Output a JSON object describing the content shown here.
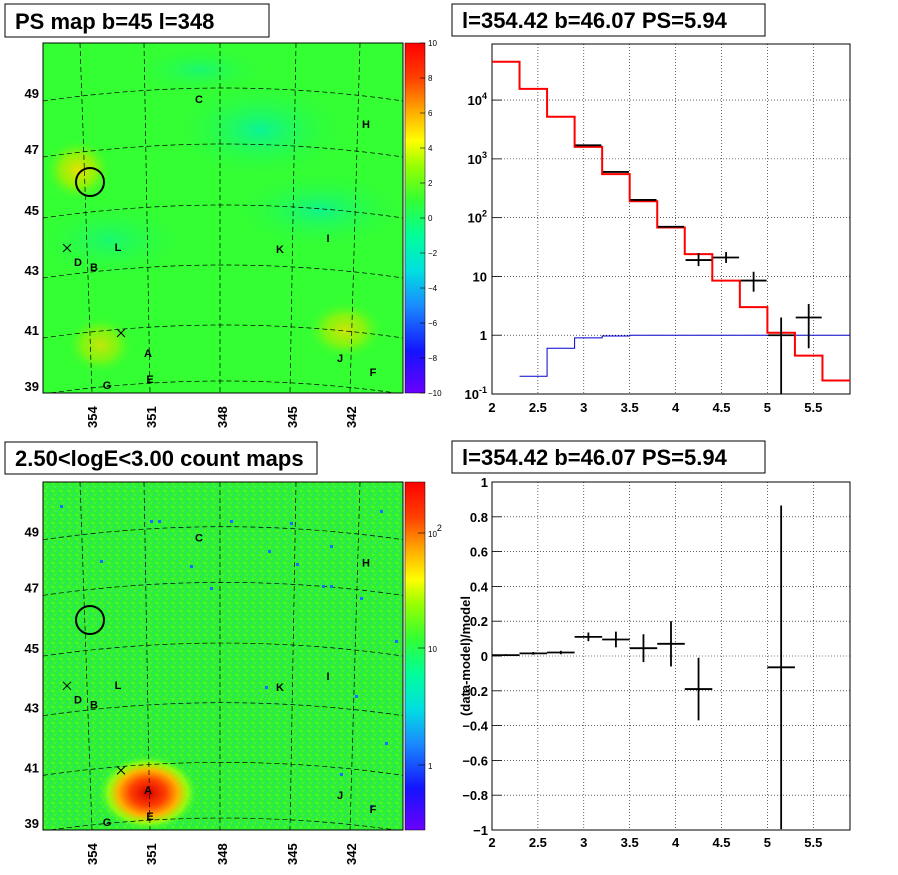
{
  "chart_data": [
    {
      "type": "heatmap",
      "title": "PS map b=45 l=348",
      "x_ticks": [
        "354",
        "351",
        "348",
        "345",
        "342"
      ],
      "y_ticks": [
        "49",
        "47",
        "45",
        "43",
        "41",
        "39"
      ],
      "colorbar_ticks": [
        "10",
        "8",
        "6",
        "4",
        "2",
        "0",
        "−2",
        "−4",
        "−6",
        "−8",
        "−10"
      ],
      "colorbar_range": [
        -10,
        10
      ],
      "source_labels": [
        "C",
        "H",
        "I",
        "K",
        "L",
        "D",
        "B",
        "A",
        "J",
        "F",
        "G",
        "E"
      ],
      "hotspots": [
        {
          "name": "source-region-upper-left",
          "value": 6
        },
        {
          "name": "source-region-lower-left",
          "value": 4
        },
        {
          "name": "source-region-right",
          "value": 5
        }
      ]
    },
    {
      "type": "line",
      "title": "l=354.42 b=46.07 PS=5.94",
      "log_y": true,
      "xlim": [
        2,
        5.9
      ],
      "ylim": [
        0.1,
        90000
      ],
      "x_ticks": [
        "2",
        "2.5",
        "3",
        "3.5",
        "4",
        "4.5",
        "5",
        "5.5"
      ],
      "y_ticks": [
        {
          "label": "10",
          "sup": "-1",
          "value": 0.1
        },
        {
          "label": "1",
          "sup": "",
          "value": 1
        },
        {
          "label": "10",
          "sup": "",
          "value": 10
        },
        {
          "label": "10",
          "sup": "2",
          "value": 100
        },
        {
          "label": "10",
          "sup": "3",
          "value": 1000
        },
        {
          "label": "10",
          "sup": "4",
          "value": 10000
        }
      ],
      "bin_edges": [
        2.0,
        2.3,
        2.6,
        2.9,
        3.2,
        3.5,
        3.8,
        4.1,
        4.4,
        4.7,
        5.0,
        5.3,
        5.6,
        5.9
      ],
      "model_total": [
        45000,
        15500,
        5200,
        1600,
        550,
        190,
        68,
        24,
        8.5,
        3,
        1.1,
        0.45,
        0.17
      ],
      "model_source": [
        null,
        0.2,
        0.6,
        0.9,
        0.97,
        1,
        1,
        1,
        1,
        1,
        1,
        1,
        1
      ],
      "data": [
        {
          "x": 3.05,
          "y": 1700,
          "ylo": 1700,
          "yhi": 1700
        },
        {
          "x": 3.35,
          "y": 600,
          "ylo": 600,
          "yhi": 600
        },
        {
          "x": 3.65,
          "y": 200,
          "ylo": 200,
          "yhi": 200
        },
        {
          "x": 3.95,
          "y": 70,
          "ylo": 70,
          "yhi": 70
        },
        {
          "x": 4.25,
          "y": 19,
          "ylo": 15,
          "yhi": 25
        },
        {
          "x": 4.55,
          "y": 21,
          "ylo": 17,
          "yhi": 26
        },
        {
          "x": 4.85,
          "y": 8.5,
          "ylo": 5.5,
          "yhi": 12
        },
        {
          "x": 5.15,
          "y": 1,
          "ylo": 0.1,
          "yhi": 2
        },
        {
          "x": 5.45,
          "y": 2,
          "ylo": 0.6,
          "yhi": 3.4
        }
      ]
    },
    {
      "type": "heatmap",
      "title": "2.50<logE<3.00 count maps",
      "x_ticks": [
        "354",
        "351",
        "348",
        "345",
        "342"
      ],
      "y_ticks": [
        "49",
        "47",
        "45",
        "43",
        "41",
        "39"
      ],
      "colorbar_ticks": [
        {
          "label": "10",
          "sup": "2"
        },
        {
          "label": "10",
          "sup": ""
        },
        {
          "label": "1",
          "sup": ""
        }
      ],
      "source_labels": [
        "C",
        "H",
        "I",
        "K",
        "L",
        "D",
        "B",
        "A",
        "J",
        "F",
        "G",
        "E"
      ],
      "hotspots": [
        {
          "name": "source-A-peak",
          "value": 100
        }
      ]
    },
    {
      "type": "scatter",
      "title": "l=354.42 b=46.07 PS=5.94",
      "ylabel": "(data-model)/model",
      "xlim": [
        2,
        5.9
      ],
      "ylim": [
        -1,
        1
      ],
      "x_ticks": [
        "2",
        "2.5",
        "3",
        "3.5",
        "4",
        "4.5",
        "5",
        "5.5"
      ],
      "y_ticks": [
        "1",
        "0.8",
        "0.6",
        "0.4",
        "0.2",
        "0",
        "−0.2",
        "−0.4",
        "−0.6",
        "−0.8",
        "−1"
      ],
      "points": [
        {
          "x": 2.15,
          "y": 0.005,
          "xerr": 0.15,
          "yerr": 0.005
        },
        {
          "x": 2.45,
          "y": 0.015,
          "xerr": 0.15,
          "yerr": 0.008
        },
        {
          "x": 2.75,
          "y": 0.02,
          "xerr": 0.15,
          "yerr": 0.01
        },
        {
          "x": 3.05,
          "y": 0.11,
          "xerr": 0.15,
          "yerr": 0.025
        },
        {
          "x": 3.35,
          "y": 0.095,
          "xerr": 0.15,
          "yerr": 0.045
        },
        {
          "x": 3.65,
          "y": 0.045,
          "xerr": 0.15,
          "yerr": 0.08
        },
        {
          "x": 3.95,
          "y": 0.07,
          "xerr": 0.15,
          "yerr": 0.13
        },
        {
          "x": 4.25,
          "y": -0.19,
          "xerr": 0.15,
          "yerr": 0.18
        },
        {
          "x": 5.15,
          "y": -0.065,
          "xerr": 0.15,
          "yerr": 0.93
        }
      ]
    }
  ]
}
